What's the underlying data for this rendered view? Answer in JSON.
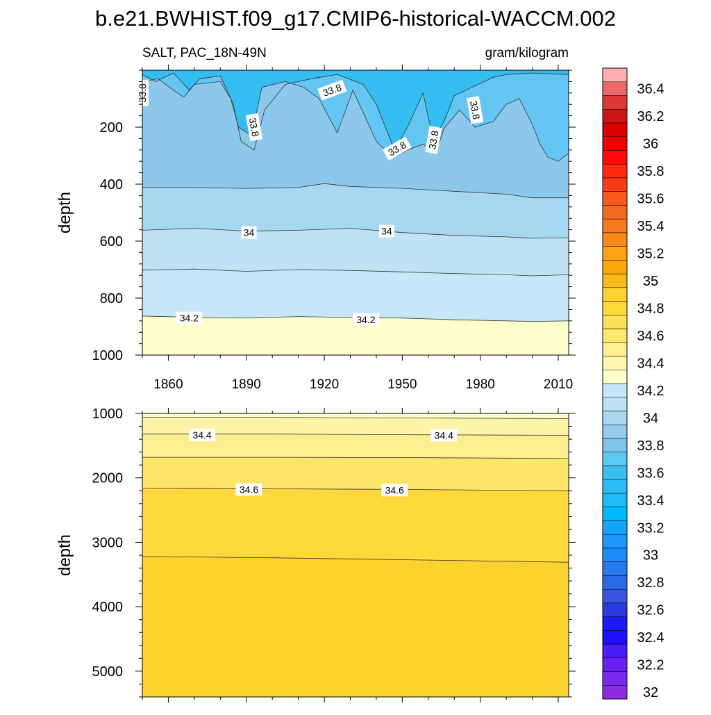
{
  "title": "b.e21.BWHIST.f09_g17.CMIP6-historical-WACCM.002",
  "subtitle_left": "SALT, PAC_18N-49N",
  "subtitle_right": "gram/kilogram",
  "chart_data": [
    {
      "type": "heatmap",
      "panel": "upper",
      "variable": "SALT",
      "region": "PAC_18N-49N",
      "units": "gram/kilogram",
      "x_range": [
        1850,
        2014
      ],
      "x_ticks": [
        1860,
        1890,
        1920,
        1950,
        1980,
        2010
      ],
      "y_range": [
        1000,
        0
      ],
      "y_ticks": [
        200,
        400,
        600,
        800,
        1000
      ],
      "ylabel": "depth",
      "contour_interval": 0.1,
      "levels": [
        {
          "lower": 33.6,
          "upper": 33.7,
          "color": "#34bdf0",
          "boundary": null
        },
        {
          "lower": 33.7,
          "upper": 33.8,
          "color": "#63c6f2",
          "boundary": [
            [
              1850,
              15
            ],
            [
              1855,
              40
            ],
            [
              1862,
              10
            ],
            [
              1868,
              70
            ],
            [
              1872,
              30
            ],
            [
              1880,
              20
            ],
            [
              1885,
              120
            ],
            [
              1888,
              250
            ],
            [
              1893,
              280
            ],
            [
              1897,
              140
            ],
            [
              1905,
              50
            ],
            [
              1915,
              30
            ],
            [
              1925,
              15
            ],
            [
              1935,
              50
            ],
            [
              1940,
              120
            ],
            [
              1947,
              280
            ],
            [
              1952,
              200
            ],
            [
              1958,
              80
            ],
            [
              1962,
              250
            ],
            [
              1966,
              180
            ],
            [
              1970,
              90
            ],
            [
              1978,
              55
            ],
            [
              1985,
              25
            ],
            [
              1990,
              15
            ],
            [
              2000,
              10
            ],
            [
              2014,
              15
            ]
          ]
        },
        {
          "lower": 33.8,
          "upper": 33.9,
          "color": "#8cc8ec",
          "boundary": [
            [
              1850,
              40
            ],
            [
              1856,
              30
            ],
            [
              1862,
              70
            ],
            [
              1866,
              95
            ],
            [
              1870,
              50
            ],
            [
              1880,
              40
            ],
            [
              1884,
              100
            ],
            [
              1887,
              200
            ],
            [
              1892,
              230
            ],
            [
              1896,
              60
            ],
            [
              1905,
              40
            ],
            [
              1912,
              60
            ],
            [
              1918,
              100
            ],
            [
              1925,
              220
            ],
            [
              1931,
              70
            ],
            [
              1936,
              170
            ],
            [
              1940,
              250
            ],
            [
              1944,
              285
            ],
            [
              1948,
              300
            ],
            [
              1952,
              280
            ],
            [
              1958,
              260
            ],
            [
              1963,
              290
            ],
            [
              1966,
              205
            ],
            [
              1972,
              140
            ],
            [
              1978,
              200
            ],
            [
              1985,
              180
            ],
            [
              1990,
              120
            ],
            [
              1995,
              100
            ],
            [
              2000,
              190
            ],
            [
              2003,
              260
            ],
            [
              2006,
              305
            ],
            [
              2010,
              320
            ],
            [
              2014,
              290
            ]
          ]
        },
        {
          "lower": 33.9,
          "upper": 34.0,
          "color": "#a7d8f1",
          "boundary": [
            [
              1850,
              412
            ],
            [
              1870,
              412
            ],
            [
              1890,
              415
            ],
            [
              1910,
              412
            ],
            [
              1920,
              398
            ],
            [
              1930,
              408
            ],
            [
              1950,
              415
            ],
            [
              1970,
              425
            ],
            [
              1990,
              435
            ],
            [
              2000,
              448
            ],
            [
              2014,
              448
            ]
          ]
        },
        {
          "lower": 34.0,
          "upper": 34.1,
          "color": "#bfe3f5",
          "boundary": [
            [
              1850,
              562
            ],
            [
              1870,
              555
            ],
            [
              1890,
              565
            ],
            [
              1910,
              562
            ],
            [
              1930,
              555
            ],
            [
              1950,
              570
            ],
            [
              1970,
              580
            ],
            [
              1990,
              585
            ],
            [
              2000,
              590
            ],
            [
              2014,
              588
            ]
          ]
        },
        {
          "lower": 34.1,
          "upper": 34.2,
          "color": "#c5e7f8",
          "boundary": [
            [
              1850,
              702
            ],
            [
              1870,
              698
            ],
            [
              1890,
              706
            ],
            [
              1910,
              700
            ],
            [
              1930,
              703
            ],
            [
              1950,
              708
            ],
            [
              1970,
              714
            ],
            [
              1990,
              718
            ],
            [
              2000,
              722
            ],
            [
              2014,
              718
            ]
          ]
        },
        {
          "lower": 34.2,
          "upper": 34.3,
          "color": "#ffffcc",
          "boundary": [
            [
              1850,
              863
            ],
            [
              1870,
              868
            ],
            [
              1890,
              870
            ],
            [
              1910,
              865
            ],
            [
              1930,
              868
            ],
            [
              1950,
              870
            ],
            [
              1970,
              876
            ],
            [
              1990,
              880
            ],
            [
              2000,
              882
            ],
            [
              2014,
              880
            ]
          ]
        }
      ],
      "contour_labels": [
        {
          "text": "33.8",
          "x": 1850,
          "y": 80,
          "rotation": -90
        },
        {
          "text": "33.8",
          "x": 1893,
          "y": 200,
          "rotation": 80
        },
        {
          "text": "33.8",
          "x": 1923,
          "y": 70,
          "rotation": -20
        },
        {
          "text": "33.8",
          "x": 1948,
          "y": 275,
          "rotation": -30
        },
        {
          "text": "33.8",
          "x": 1962,
          "y": 245,
          "rotation": -80
        },
        {
          "text": "33.8",
          "x": 1978,
          "y": 140,
          "rotation": 80
        },
        {
          "text": "34",
          "x": 1891,
          "y": 570,
          "rotation": 0
        },
        {
          "text": "34",
          "x": 1944,
          "y": 565,
          "rotation": 0
        },
        {
          "text": "34.2",
          "x": 1868,
          "y": 870,
          "rotation": 0
        },
        {
          "text": "34.2",
          "x": 1936,
          "y": 875,
          "rotation": 0
        }
      ]
    },
    {
      "type": "heatmap",
      "panel": "lower",
      "variable": "SALT",
      "region": "PAC_18N-49N",
      "units": "gram/kilogram",
      "x_range": [
        1850,
        2014
      ],
      "x_ticks": [
        1860,
        1890,
        1920,
        1950,
        1980,
        2010
      ],
      "y_range": [
        5400,
        1000
      ],
      "y_ticks": [
        1000,
        2000,
        3000,
        4000,
        5000
      ],
      "ylabel": "depth",
      "contour_interval": 0.1,
      "levels": [
        {
          "lower": 34.2,
          "upper": 34.3,
          "color": "#ffffcc",
          "boundary": null
        },
        {
          "lower": 34.3,
          "upper": 34.4,
          "color": "#fef4a8",
          "boundary": [
            [
              1850,
              1060
            ],
            [
              1900,
              1060
            ],
            [
              1950,
              1070
            ],
            [
              2014,
              1080
            ]
          ]
        },
        {
          "lower": 34.4,
          "upper": 34.5,
          "color": "#fdee90",
          "boundary": [
            [
              1850,
              1320
            ],
            [
              1900,
              1320
            ],
            [
              1950,
              1330
            ],
            [
              2014,
              1340
            ]
          ]
        },
        {
          "lower": 34.5,
          "upper": 34.6,
          "color": "#fde56a",
          "boundary": [
            [
              1850,
              1680
            ],
            [
              1900,
              1680
            ],
            [
              1950,
              1685
            ],
            [
              2014,
              1700
            ]
          ]
        },
        {
          "lower": 34.6,
          "upper": 34.7,
          "color": "#fdd93c",
          "boundary": [
            [
              1850,
              2160
            ],
            [
              1900,
              2170
            ],
            [
              1950,
              2180
            ],
            [
              2014,
              2200
            ]
          ]
        },
        {
          "lower": 34.7,
          "upper": 34.8,
          "color": "#fcd22e",
          "boundary": [
            [
              1850,
              3220
            ],
            [
              1900,
              3240
            ],
            [
              1950,
              3270
            ],
            [
              2014,
              3310
            ]
          ]
        }
      ],
      "contour_labels": [
        {
          "text": "34.4",
          "x": 1873,
          "y": 1335,
          "rotation": 0
        },
        {
          "text": "34.4",
          "x": 1966,
          "y": 1340,
          "rotation": 0
        },
        {
          "text": "34.6",
          "x": 1891,
          "y": 2180,
          "rotation": 0
        },
        {
          "text": "34.6",
          "x": 1947,
          "y": 2190,
          "rotation": 0
        }
      ]
    }
  ],
  "colorbar": {
    "levels": [
      32,
      32.1,
      32.2,
      32.3,
      32.4,
      32.5,
      32.6,
      32.7,
      32.8,
      32.9,
      33,
      33.1,
      33.2,
      33.3,
      33.4,
      33.5,
      33.6,
      33.7,
      33.8,
      33.9,
      34,
      34.1,
      34.2,
      34.3,
      34.4,
      34.5,
      34.6,
      34.7,
      34.8,
      34.9,
      35,
      35.1,
      35.2,
      35.3,
      35.4,
      35.5,
      35.6,
      35.7,
      35.8,
      35.9,
      36,
      36.1,
      36.2,
      36.3,
      36.4,
      36.5
    ],
    "labels": [
      "32",
      "32.2",
      "32.4",
      "32.6",
      "32.8",
      "33",
      "33.2",
      "33.4",
      "33.6",
      "33.8",
      "34",
      "34.2",
      "34.4",
      "34.6",
      "34.8",
      "35",
      "35.2",
      "35.4",
      "35.6",
      "35.8",
      "36",
      "36.2",
      "36.4"
    ],
    "colors": [
      "#8a2be2",
      "#7a28f0",
      "#6a1ef5",
      "#4b1cf7",
      "#1e10fd",
      "#1a1cf5",
      "#2a3adf",
      "#3a55e0",
      "#2a6ae6",
      "#2a78ee",
      "#1e8af5",
      "#1e98f8",
      "#12a6fb",
      "#00bafd",
      "#1dbaf7",
      "#2cbcf4",
      "#36bfef",
      "#5cc8f2",
      "#7ec4ea",
      "#96cbed",
      "#a9d6f0",
      "#bee3f5",
      "#c5e7f8",
      "#ffffcc",
      "#fff5ac",
      "#feee90",
      "#fee86e",
      "#fde25c",
      "#fdd93c",
      "#fcd22e",
      "#f8ba1a",
      "#f9a80a",
      "#fba214",
      "#f98a14",
      "#f77a1e",
      "#f76a22",
      "#fb5a1a",
      "#fd3a16",
      "#fe2a10",
      "#ff0a0a",
      "#f20000",
      "#dc0000",
      "#cc1616",
      "#dc3838",
      "#ec6868",
      "#fcb0b0"
    ]
  }
}
